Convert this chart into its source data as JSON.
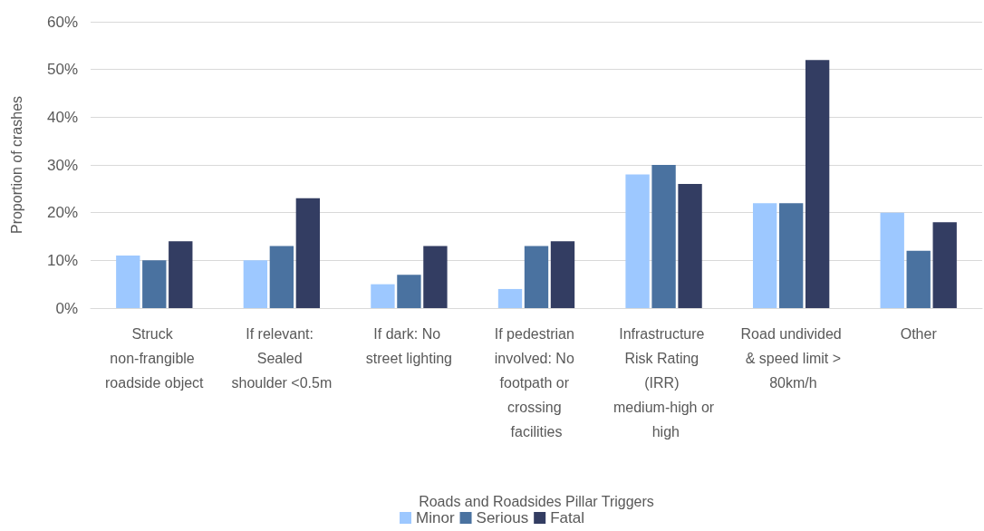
{
  "chart_data": {
    "type": "bar",
    "categories": [
      "Struck non-frangible roadside object",
      "If relevant: Sealed shoulder <0.5m",
      "If dark: No street lighting",
      "If pedestrian involved: No footpath or crossing facilities",
      "Infrastructure Risk Rating (IRR) medium-high or high",
      "Road undivided & speed limit > 80km/h",
      "Other"
    ],
    "series": [
      {
        "name": "Minor",
        "color": "#9dc8ff",
        "values": [
          11,
          10,
          5,
          4,
          28,
          22,
          20
        ]
      },
      {
        "name": "Serious",
        "color": "#4a72a0",
        "values": [
          10,
          13,
          7,
          13,
          30,
          22,
          12
        ]
      },
      {
        "name": "Fatal",
        "color": "#333d62",
        "values": [
          14,
          23,
          13,
          14,
          26,
          52,
          18
        ]
      }
    ],
    "xlabel": "Roads and Roadsides Pillar Triggers",
    "ylabel": "Proportion of crashes",
    "ylim": [
      0,
      60
    ],
    "yticks": [
      {
        "value": 0,
        "label": "0%"
      },
      {
        "value": 10,
        "label": "10%"
      },
      {
        "value": 20,
        "label": "20%"
      },
      {
        "value": 30,
        "label": "30%"
      },
      {
        "value": 40,
        "label": "40%"
      },
      {
        "value": 50,
        "label": "50%"
      },
      {
        "value": 60,
        "label": "60%"
      }
    ],
    "grid": "y",
    "legend": "bottom"
  }
}
